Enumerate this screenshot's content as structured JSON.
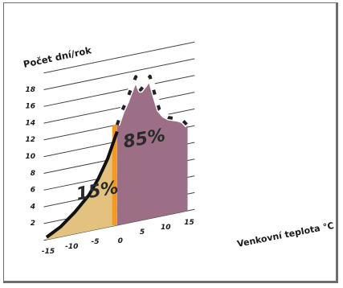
{
  "chart_data": {
    "type": "area",
    "ylabel": "Počet dní/rok",
    "xlabel": "Venkovní teplota °C",
    "y_ticks": [
      "2",
      "4",
      "6",
      "8",
      "10",
      "12",
      "14",
      "16",
      "18"
    ],
    "x_ticks": [
      "-15",
      "-10",
      "-5",
      "0",
      "5",
      "10",
      "15"
    ],
    "xlim": [
      -15,
      15
    ],
    "ylim": [
      0,
      20
    ],
    "grid": true,
    "series": [
      {
        "region": "below-zero",
        "color": "#e2c27e",
        "label": "15%",
        "x": [
          -15,
          -12,
          -9,
          -6,
          -4,
          -2,
          0
        ],
        "y": [
          0.3,
          1.2,
          2.6,
          4.3,
          6.0,
          8.2,
          11.2
        ]
      },
      {
        "region": "above-zero",
        "color": "#9c6f86",
        "label": "85%",
        "x": [
          0,
          1,
          2,
          3,
          4,
          5,
          6,
          7,
          8,
          9,
          10,
          11,
          12,
          13,
          14,
          15
        ],
        "y": [
          12.0,
          13.5,
          14.6,
          16.0,
          17.3,
          15.6,
          16.2,
          17.0,
          14.8,
          12.8,
          12.0,
          11.6,
          11.4,
          11.2,
          10.9,
          10.2
        ]
      }
    ],
    "divider_color": "#f29a1e"
  }
}
